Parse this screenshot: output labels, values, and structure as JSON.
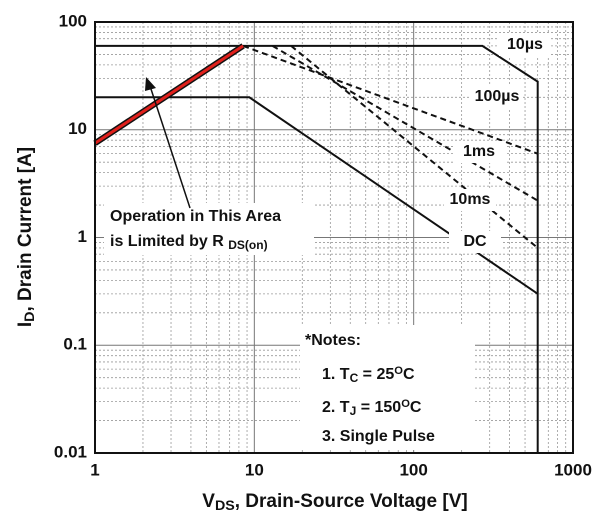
{
  "chart_data": {
    "type": "line",
    "log_x": true,
    "log_y": true,
    "grid": true,
    "xlim": [
      1,
      1000
    ],
    "ylim": [
      0.01,
      100
    ],
    "xticks": [
      1,
      10,
      100,
      1000
    ],
    "yticks": [
      0.01,
      0.1,
      1,
      10,
      100
    ],
    "xlabel": [
      {
        "t": "V"
      },
      {
        "sub": "DS"
      },
      {
        "t": ", Drain-Source Voltage [V]"
      }
    ],
    "ylabel": [
      {
        "t": "I"
      },
      {
        "sub": "D"
      },
      {
        "t": ", Drain Current [A]"
      }
    ],
    "limit_line": {
      "color": "#e0201c",
      "x": [
        1,
        8.5
      ],
      "values": [
        7.5,
        60
      ]
    },
    "series": [
      {
        "name": "10µs",
        "color": "#111111",
        "style": "solid",
        "x": [
          1,
          270,
          600,
          600
        ],
        "values": [
          60,
          60,
          28,
          0.01
        ]
      },
      {
        "name": "100µs",
        "color": "#111111",
        "style": "dashed",
        "x": [
          8.5,
          600
        ],
        "values": [
          60,
          6
        ]
      },
      {
        "name": "1ms",
        "color": "#111111",
        "style": "dashed",
        "x": [
          13,
          600
        ],
        "values": [
          60,
          2.2
        ]
      },
      {
        "name": "10ms",
        "color": "#111111",
        "style": "dashed",
        "x": [
          17,
          600
        ],
        "values": [
          60,
          0.8
        ]
      },
      {
        "name": "DC",
        "color": "#111111",
        "style": "solid",
        "x": [
          1,
          9.3,
          600
        ],
        "values": [
          20,
          20,
          0.3
        ]
      }
    ],
    "annotation": [
      [
        {
          "t": "Operation in This Area"
        }
      ],
      [
        {
          "t": "is Limited by R "
        },
        {
          "sub": "DS(on)"
        }
      ]
    ],
    "notes": [
      [
        {
          "t": "*Notes:"
        }
      ],
      [
        {
          "t": "1. T"
        },
        {
          "sub": "C"
        },
        {
          "t": " = 25"
        },
        {
          "sup": "O"
        },
        {
          "t": "C"
        }
      ],
      [
        {
          "t": "2. T"
        },
        {
          "sub": "J"
        },
        {
          "t": " = 150"
        },
        {
          "sup": "O"
        },
        {
          "t": "C"
        }
      ],
      [
        {
          "t": "3. Single Pulse"
        }
      ]
    ]
  }
}
